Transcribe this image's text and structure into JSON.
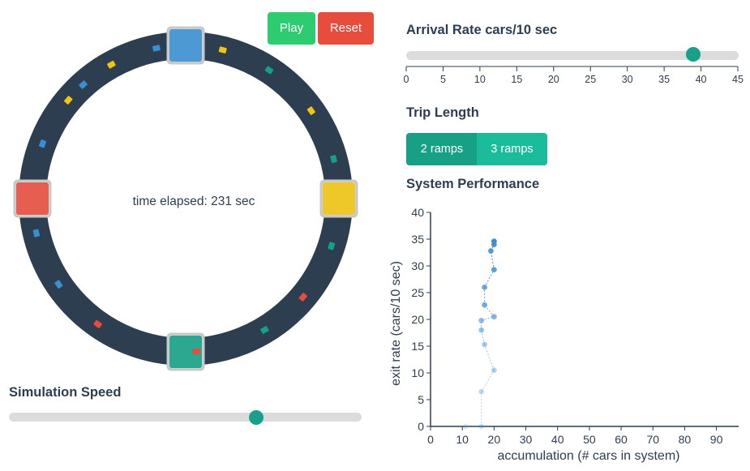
{
  "controls": {
    "play_label": "Play",
    "reset_label": "Reset",
    "time_elapsed": "time elapsed: 231 sec"
  },
  "arrival_rate": {
    "label": "Arrival Rate cars/10 sec",
    "value": 39,
    "min": 0,
    "max": 45,
    "ticks": [
      "0",
      "5",
      "10",
      "15",
      "20",
      "25",
      "30",
      "35",
      "40",
      "45"
    ]
  },
  "trip_length": {
    "label": "Trip Length",
    "options": [
      "2 ramps",
      "3 ramps"
    ],
    "selected": "2 ramps"
  },
  "simulation_speed": {
    "label": "Simulation Speed",
    "value_fraction": 0.7
  },
  "colors": {
    "track": "#2c3e50",
    "blue": "#3a8fd1",
    "yellow": "#f1c40f",
    "green": "#16a085",
    "red": "#e74c3c",
    "play": "#2ecc71",
    "reset": "#e74c3c"
  },
  "ring": {
    "ramps": [
      {
        "name": "top",
        "color": "blue",
        "angle": 0
      },
      {
        "name": "right",
        "color": "yellow",
        "angle": 90
      },
      {
        "name": "bottom",
        "color": "green",
        "angle": 180
      },
      {
        "name": "left",
        "color": "red",
        "angle": 270
      }
    ],
    "cars": [
      {
        "angle": 14,
        "color": "yellow"
      },
      {
        "angle": 33,
        "color": "green"
      },
      {
        "angle": 55,
        "color": "yellow"
      },
      {
        "angle": 75,
        "color": "green"
      },
      {
        "angle": 108,
        "color": "green"
      },
      {
        "angle": 130,
        "color": "red"
      },
      {
        "angle": 149,
        "color": "green"
      },
      {
        "angle": 176,
        "color": "red"
      },
      {
        "angle": 215,
        "color": "red"
      },
      {
        "angle": 236,
        "color": "blue"
      },
      {
        "angle": 257,
        "color": "blue"
      },
      {
        "angle": 291,
        "color": "blue"
      },
      {
        "angle": 310,
        "color": "yellow"
      },
      {
        "angle": 318,
        "color": "blue"
      },
      {
        "angle": 331,
        "color": "yellow"
      },
      {
        "angle": 349,
        "color": "blue"
      }
    ]
  },
  "chart_data": {
    "type": "scatter",
    "title": "System Performance",
    "xlabel": "accumulation (# cars in system)",
    "ylabel": "exit rate (cars/10 sec)",
    "xlim": [
      0,
      97
    ],
    "ylim": [
      0,
      40
    ],
    "xticks": [
      0,
      10,
      20,
      30,
      40,
      50,
      60,
      70,
      80,
      90
    ],
    "yticks": [
      0,
      5,
      10,
      15,
      20,
      25,
      30,
      35,
      40
    ],
    "series": [
      {
        "connected": true,
        "x": [
          11,
          16,
          16,
          20,
          17,
          16,
          16,
          20,
          17,
          17,
          20,
          19,
          20,
          20
        ],
        "y": [
          0,
          0,
          6.5,
          10.5,
          15.3,
          18,
          19.8,
          20.5,
          22.7,
          26,
          29.3,
          32.8,
          34,
          34.6
        ]
      }
    ]
  }
}
